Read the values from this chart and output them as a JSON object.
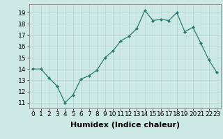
{
  "x": [
    0,
    1,
    2,
    3,
    4,
    5,
    6,
    7,
    8,
    9,
    10,
    11,
    12,
    13,
    14,
    15,
    16,
    17,
    18,
    19,
    20,
    21,
    22,
    23
  ],
  "y": [
    14.0,
    14.0,
    13.2,
    12.5,
    11.0,
    11.7,
    13.1,
    13.4,
    13.9,
    15.0,
    15.6,
    16.5,
    16.9,
    17.6,
    19.2,
    18.3,
    18.4,
    18.3,
    19.0,
    17.3,
    17.7,
    16.3,
    14.8,
    13.7
  ],
  "xlim": [
    -0.5,
    23.5
  ],
  "ylim": [
    10.5,
    19.75
  ],
  "yticks": [
    11,
    12,
    13,
    14,
    15,
    16,
    17,
    18,
    19
  ],
  "xticks": [
    0,
    1,
    2,
    3,
    4,
    5,
    6,
    7,
    8,
    9,
    10,
    11,
    12,
    13,
    14,
    15,
    16,
    17,
    18,
    19,
    20,
    21,
    22,
    23
  ],
  "xlabel": "Humidex (Indice chaleur)",
  "line_color": "#2d7a6e",
  "marker": "D",
  "marker_size": 2.2,
  "bg_color": "#cce9e5",
  "grid_color": "#b8d8d4",
  "tick_label_fontsize": 6.5,
  "xlabel_fontsize": 8
}
